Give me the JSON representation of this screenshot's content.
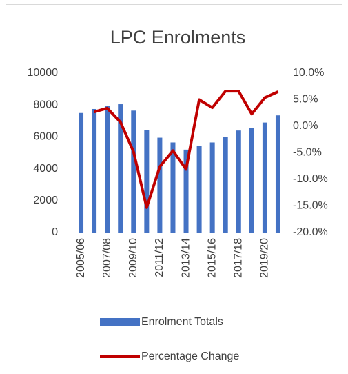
{
  "chart_data": {
    "type": "bar_line",
    "title": "LPC Enrolments",
    "categories": [
      "2005/06",
      null,
      "2007/08",
      null,
      "2009/10",
      null,
      "2011/12",
      null,
      "2013/14",
      null,
      "2015/16",
      null,
      "2017/18",
      null,
      "2019/20",
      null
    ],
    "series": [
      {
        "name": "Enrolment Totals",
        "type": "bar",
        "color": "#4472c4",
        "values": [
          7500,
          7750,
          7950,
          8050,
          7650,
          6450,
          5950,
          5650,
          5200,
          5450,
          5650,
          6000,
          6400,
          6550,
          6900,
          7350
        ]
      },
      {
        "name": "Percentage Change",
        "type": "line",
        "axis": "y2",
        "color": "#c00000",
        "values": [
          null,
          2.7,
          3.4,
          0.8,
          -4.8,
          -15.3,
          -7.6,
          -4.6,
          -8.1,
          5.0,
          3.5,
          6.6,
          6.6,
          2.3,
          5.4,
          6.5
        ]
      }
    ],
    "ylim": [
      0,
      10000
    ],
    "yticks": [
      0,
      2000,
      4000,
      6000,
      8000,
      10000
    ],
    "y2lim": [
      -20,
      10
    ],
    "y2ticks": [
      {
        "value": -20,
        "label": "-20.0%"
      },
      {
        "value": -15,
        "label": "-15.0%"
      },
      {
        "value": -10,
        "label": "-10.0%"
      },
      {
        "value": -5,
        "label": "-5.0%"
      },
      {
        "value": 0,
        "label": "0.0%"
      },
      {
        "value": 5,
        "label": "5.0%"
      },
      {
        "value": 10,
        "label": "10.0%"
      }
    ],
    "legend": "bottom"
  }
}
